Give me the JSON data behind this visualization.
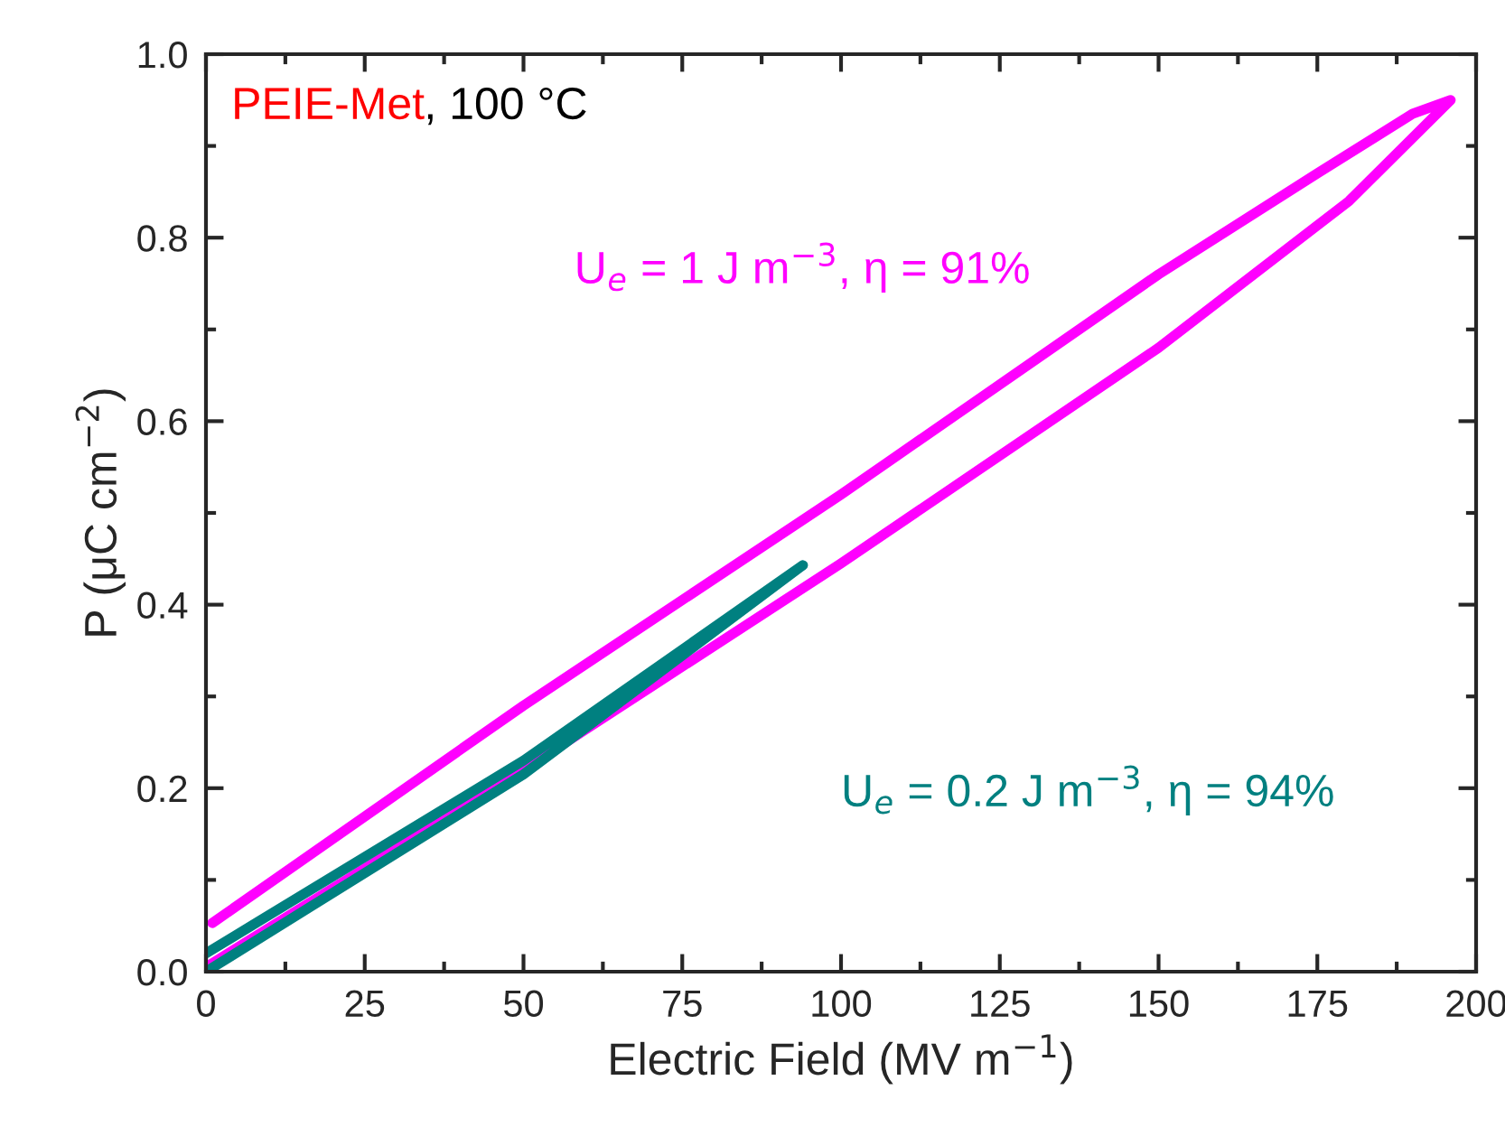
{
  "chart_data": {
    "type": "line",
    "xlabel": "Electric Field (MV m$^{−1}$)",
    "ylabel": "P (μC cm$^{−2}$)",
    "series": [
      {
        "color": "#ff00ff",
        "x": [
          0,
          50,
          100,
          150,
          180,
          196,
          190,
          175,
          150,
          100,
          50,
          1
        ],
        "values": [
          0.005,
          0.22,
          0.445,
          0.68,
          0.84,
          0.95,
          0.935,
          0.87,
          0.76,
          0.52,
          0.29,
          0.053
        ]
      },
      {
        "color": "#008080",
        "x": [
          0,
          50,
          94,
          50,
          0
        ],
        "values": [
          0.0,
          0.215,
          0.443,
          0.23,
          0.02
        ]
      }
    ],
    "annotations": [
      "PEIE-Met",
      ", 100 °C",
      "U$_{e}$ = 1 J m$^{−3}$, η = 91%",
      "U$_{e}$ = 0.2 J m$^{−3}$, η = 94%"
    ],
    "xlim": [
      0,
      200
    ],
    "xticks": [
      0,
      25,
      50,
      75,
      100,
      125,
      150,
      175,
      200
    ],
    "ylim": [
      0,
      1.0
    ],
    "yticks": [
      {
        "value": 0,
        "label": "0.0"
      },
      {
        "value": 0.2,
        "label": "0.2"
      },
      {
        "value": 0.4,
        "label": "0.4"
      },
      {
        "value": 0.6,
        "label": "0.6"
      },
      {
        "value": 0.8,
        "label": "0.8"
      },
      {
        "value": 1.0,
        "label": "1.0"
      }
    ]
  }
}
